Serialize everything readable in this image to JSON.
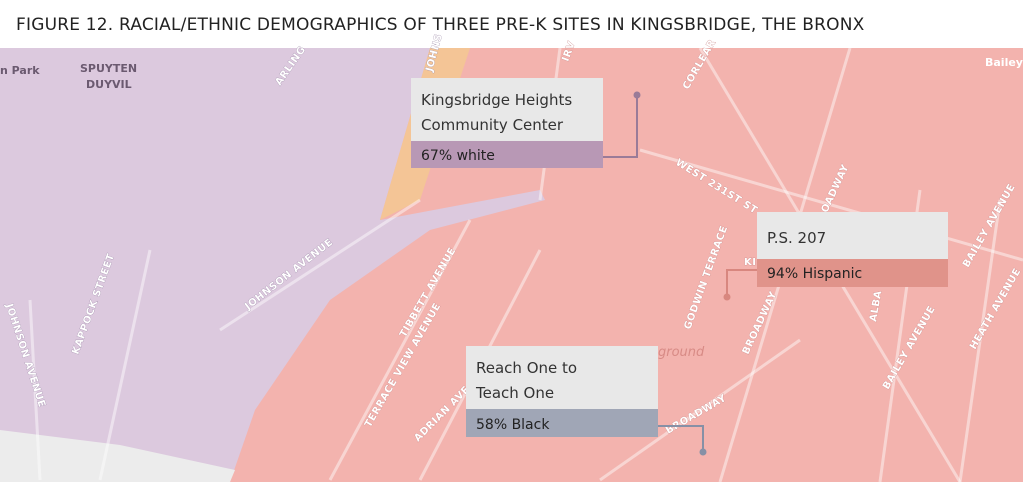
{
  "title": "FIGURE 12. RACIAL/ETHNIC DEMOGRAPHICS OF THREE PRE-K SITES IN KINGSBRIDGE, THE BRONX",
  "map_labels": [
    "n Park",
    "SPUYTEN",
    "DUYVIL",
    "ARLING",
    "JOHNS",
    "IRV",
    "CORLEAR",
    "Bailey",
    "WEST 231ST ST",
    "BROADWAY",
    "JOHNSON AVENUE",
    "KAPPOCK STREET",
    "JOHNSON AVENUE",
    "TIBBETT AVENUE",
    "TERRACE VIEW AVENUE",
    "ADRIAN AVE",
    "GODWIN TERRACE",
    "KI",
    "BROADWAY",
    "ALBA",
    "BAILEY AVENUE",
    "BAILEY AVENUE",
    "HEATH AVENUE",
    "ground",
    "BROADWAY"
  ],
  "sites": [
    {
      "name": [
        "Kingsbridge Heights",
        "Community Center"
      ],
      "stat": "67% white"
    },
    {
      "name": [
        "P.S. 207"
      ],
      "stat": "94% Hispanic"
    },
    {
      "name": [
        "Reach One to",
        "Teach One"
      ],
      "stat": "58% Black"
    }
  ]
}
